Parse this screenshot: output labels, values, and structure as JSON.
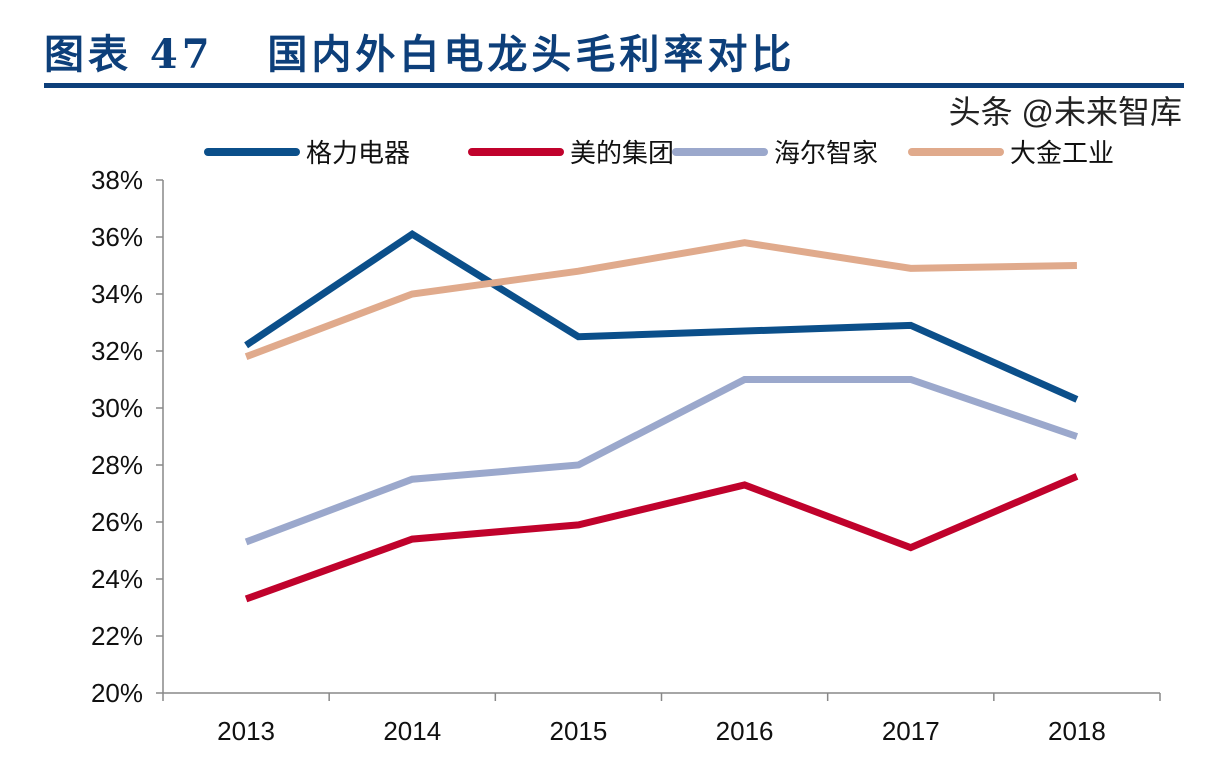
{
  "title": "图表 47   国内外白电龙头毛利率对比",
  "watermark": "头条 @未来智库",
  "chart_data": {
    "type": "line",
    "title": "图表 47   国内外白电龙头毛利率对比",
    "xlabel": "",
    "ylabel": "",
    "categories": [
      "2013",
      "2014",
      "2015",
      "2016",
      "2017",
      "2018"
    ],
    "ylim": [
      20,
      38
    ],
    "yticks": [
      "20%",
      "22%",
      "24%",
      "26%",
      "28%",
      "30%",
      "32%",
      "34%",
      "36%",
      "38%"
    ],
    "grid": false,
    "legend_position": "top",
    "series": [
      {
        "name": "格力电器",
        "color": "#0b4f8a",
        "values": [
          32.2,
          36.1,
          32.5,
          32.7,
          32.9,
          30.3
        ]
      },
      {
        "name": "美的集团",
        "color": "#c0022c",
        "values": [
          23.3,
          25.4,
          25.9,
          27.3,
          25.1,
          27.6
        ]
      },
      {
        "name": "海尔智家",
        "color": "#9ba8cc",
        "values": [
          25.3,
          27.5,
          28.0,
          31.0,
          31.0,
          29.0
        ]
      },
      {
        "name": "大金工业",
        "color": "#e0aa8c",
        "values": [
          31.8,
          34.0,
          34.8,
          35.8,
          34.9,
          35.0
        ]
      }
    ]
  }
}
